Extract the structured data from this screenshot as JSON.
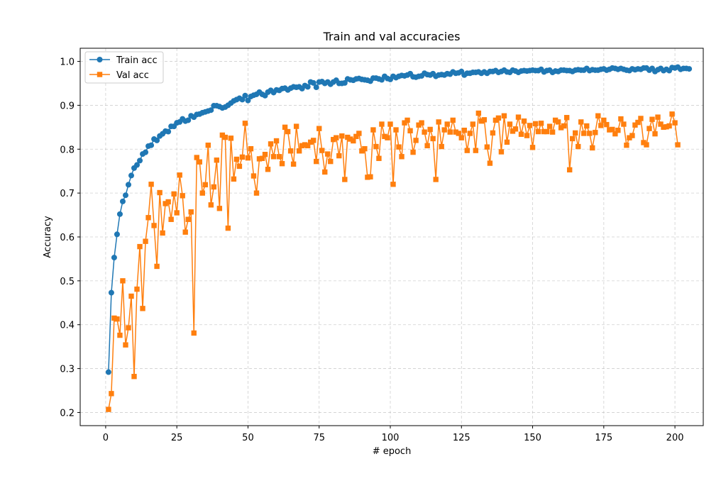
{
  "chart_data": {
    "type": "line",
    "title": "Train and val accuracies",
    "xlabel": "# epoch",
    "ylabel": "Accuracy",
    "xlim": [
      -8.95,
      209.95
    ],
    "ylim": [
      0.17,
      1.03
    ],
    "xticks": [
      0,
      25,
      50,
      75,
      100,
      125,
      150,
      175,
      200
    ],
    "yticks": [
      0.2,
      0.3,
      0.4,
      0.5,
      0.6,
      0.7,
      0.8,
      0.9,
      1.0
    ],
    "ytick_labels": [
      "0.2",
      "0.3",
      "0.4",
      "0.5",
      "0.6",
      "0.7",
      "0.8",
      "0.9",
      "1.0"
    ],
    "grid": true,
    "legend_position": "top-left",
    "series": [
      {
        "name": "Train acc",
        "color": "#1f77b4",
        "marker": "circle",
        "x_start": 1,
        "values": [
          0.292,
          0.473,
          0.553,
          0.606,
          0.652,
          0.681,
          0.695,
          0.719,
          0.74,
          0.757,
          0.764,
          0.774,
          0.789,
          0.793,
          0.807,
          0.809,
          0.823,
          0.82,
          0.83,
          0.835,
          0.841,
          0.84,
          0.852,
          0.852,
          0.86,
          0.862,
          0.869,
          0.864,
          0.866,
          0.876,
          0.873,
          0.879,
          0.88,
          0.883,
          0.885,
          0.887,
          0.889,
          0.899,
          0.899,
          0.897,
          0.894,
          0.896,
          0.9,
          0.905,
          0.91,
          0.913,
          0.916,
          0.913,
          0.922,
          0.911,
          0.92,
          0.923,
          0.925,
          0.93,
          0.925,
          0.922,
          0.93,
          0.934,
          0.929,
          0.935,
          0.934,
          0.938,
          0.939,
          0.935,
          0.939,
          0.942,
          0.941,
          0.942,
          0.938,
          0.945,
          0.942,
          0.953,
          0.951,
          0.941,
          0.953,
          0.954,
          0.95,
          0.953,
          0.948,
          0.953,
          0.957,
          0.95,
          0.95,
          0.951,
          0.96,
          0.958,
          0.957,
          0.96,
          0.961,
          0.959,
          0.958,
          0.957,
          0.955,
          0.962,
          0.962,
          0.96,
          0.958,
          0.966,
          0.961,
          0.959,
          0.966,
          0.963,
          0.966,
          0.968,
          0.967,
          0.969,
          0.972,
          0.965,
          0.964,
          0.966,
          0.967,
          0.973,
          0.97,
          0.969,
          0.972,
          0.966,
          0.969,
          0.97,
          0.969,
          0.972,
          0.971,
          0.976,
          0.973,
          0.974,
          0.977,
          0.969,
          0.973,
          0.973,
          0.975,
          0.975,
          0.976,
          0.973,
          0.976,
          0.973,
          0.977,
          0.977,
          0.979,
          0.975,
          0.977,
          0.98,
          0.976,
          0.975,
          0.98,
          0.978,
          0.975,
          0.978,
          0.979,
          0.978,
          0.979,
          0.98,
          0.979,
          0.979,
          0.982,
          0.976,
          0.979,
          0.98,
          0.975,
          0.978,
          0.977,
          0.98,
          0.98,
          0.979,
          0.979,
          0.977,
          0.98,
          0.981,
          0.98,
          0.98,
          0.984,
          0.979,
          0.981,
          0.98,
          0.98,
          0.982,
          0.983,
          0.98,
          0.982,
          0.985,
          0.984,
          0.982,
          0.984,
          0.982,
          0.98,
          0.979,
          0.983,
          0.981,
          0.983,
          0.982,
          0.985,
          0.985,
          0.98,
          0.984,
          0.977,
          0.981,
          0.984,
          0.979,
          0.982,
          0.979,
          0.986,
          0.985,
          0.987,
          0.982,
          0.984,
          0.984,
          0.983
        ]
      },
      {
        "name": "Val acc",
        "color": "#ff7f0e",
        "marker": "square",
        "x_start": 1,
        "values": [
          0.207,
          0.243,
          0.415,
          0.413,
          0.376,
          0.5,
          0.354,
          0.393,
          0.465,
          0.282,
          0.481,
          0.578,
          0.437,
          0.59,
          0.644,
          0.72,
          0.626,
          0.533,
          0.701,
          0.609,
          0.676,
          0.68,
          0.64,
          0.698,
          0.655,
          0.741,
          0.694,
          0.611,
          0.64,
          0.657,
          0.381,
          0.781,
          0.771,
          0.7,
          0.719,
          0.809,
          0.673,
          0.714,
          0.775,
          0.665,
          0.832,
          0.827,
          0.62,
          0.825,
          0.732,
          0.777,
          0.761,
          0.782,
          0.859,
          0.78,
          0.801,
          0.739,
          0.7,
          0.778,
          0.779,
          0.788,
          0.754,
          0.812,
          0.783,
          0.819,
          0.783,
          0.767,
          0.85,
          0.84,
          0.796,
          0.766,
          0.852,
          0.796,
          0.808,
          0.81,
          0.808,
          0.816,
          0.82,
          0.772,
          0.847,
          0.797,
          0.748,
          0.789,
          0.772,
          0.822,
          0.826,
          0.785,
          0.83,
          0.731,
          0.827,
          0.823,
          0.819,
          0.829,
          0.836,
          0.796,
          0.801,
          0.736,
          0.737,
          0.844,
          0.806,
          0.779,
          0.857,
          0.829,
          0.826,
          0.857,
          0.72,
          0.844,
          0.805,
          0.783,
          0.86,
          0.866,
          0.842,
          0.793,
          0.82,
          0.855,
          0.86,
          0.839,
          0.808,
          0.845,
          0.824,
          0.731,
          0.862,
          0.806,
          0.844,
          0.857,
          0.839,
          0.866,
          0.839,
          0.836,
          0.826,
          0.843,
          0.797,
          0.836,
          0.857,
          0.797,
          0.882,
          0.864,
          0.867,
          0.805,
          0.768,
          0.837,
          0.866,
          0.871,
          0.794,
          0.876,
          0.816,
          0.857,
          0.841,
          0.846,
          0.873,
          0.834,
          0.864,
          0.831,
          0.854,
          0.804,
          0.858,
          0.84,
          0.859,
          0.84,
          0.84,
          0.852,
          0.839,
          0.866,
          0.862,
          0.849,
          0.853,
          0.872,
          0.753,
          0.824,
          0.837,
          0.806,
          0.862,
          0.836,
          0.853,
          0.836,
          0.803,
          0.838,
          0.876,
          0.854,
          0.866,
          0.856,
          0.844,
          0.845,
          0.835,
          0.843,
          0.869,
          0.857,
          0.809,
          0.826,
          0.831,
          0.855,
          0.861,
          0.87,
          0.815,
          0.81,
          0.847,
          0.868,
          0.835,
          0.873,
          0.857,
          0.85,
          0.851,
          0.853,
          0.88,
          0.86,
          0.81
        ]
      }
    ]
  }
}
